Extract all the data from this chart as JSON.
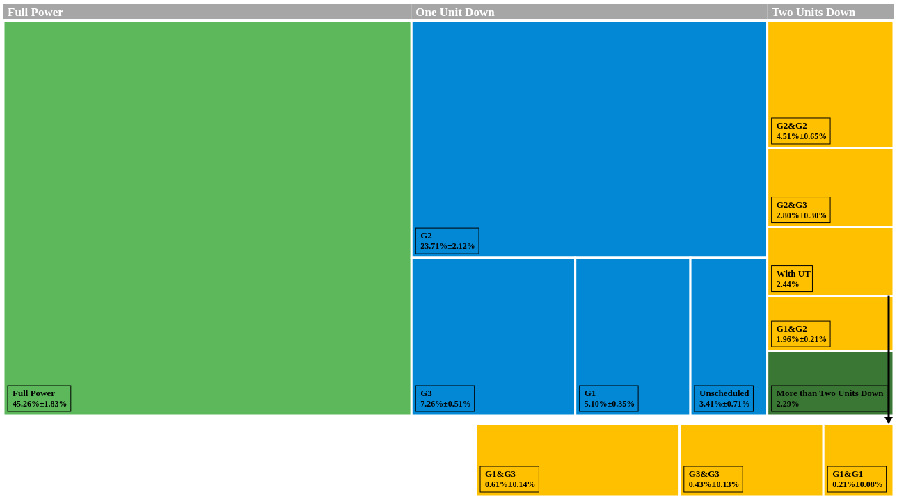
{
  "chart_data": {
    "type": "other",
    "categories": [
      "Full Power",
      "G2",
      "G3",
      "G1",
      "Unscheduled",
      "G2&G2",
      "G2&G3",
      "With UT",
      "G1&G2",
      "More than Two Units Down",
      "G1&G3",
      "G3&G3",
      "G1&G1"
    ],
    "series": [
      {
        "name": "Full Power",
        "color": "#5cb85a",
        "values": [
          45.26,
          null,
          null,
          null,
          null,
          null,
          null,
          null,
          null,
          null,
          null,
          null,
          null
        ],
        "value_labels": [
          "45.26%±1.83%",
          null,
          null,
          null,
          null,
          null,
          null,
          null,
          null,
          null,
          null,
          null,
          null
        ]
      },
      {
        "name": "One Unit Down",
        "color": "#0288d4",
        "values": [
          null,
          23.71,
          7.26,
          5.1,
          3.41,
          null,
          null,
          null,
          null,
          null,
          null,
          null,
          null
        ],
        "value_labels": [
          null,
          "23.71%±2.12%",
          "7.26%±0.51%",
          "5.10%±0.35%",
          "3.41%±0.71%",
          null,
          null,
          null,
          null,
          null,
          null,
          null,
          null
        ]
      },
      {
        "name": "Two Units Down",
        "values": [
          null,
          null,
          null,
          null,
          null,
          4.51,
          2.8,
          2.44,
          1.96,
          2.29,
          null,
          null,
          null
        ],
        "value_labels": [
          null,
          null,
          null,
          null,
          null,
          "4.51%±0.65%",
          "2.80%±0.30%",
          "2.44%",
          "1.96%±0.21%",
          "2.29%",
          null,
          null,
          null
        ],
        "colors": [
          null,
          null,
          null,
          null,
          null,
          "#ffc000",
          "#ffc000",
          "#ffc000",
          "#ffc000",
          "#3a7634",
          null,
          null,
          null
        ]
      },
      {
        "color": "#ffc000",
        "values": [
          null,
          null,
          null,
          null,
          null,
          null,
          null,
          null,
          null,
          null,
          0.61,
          0.43,
          0.21
        ],
        "value_labels": [
          null,
          null,
          null,
          null,
          null,
          null,
          null,
          null,
          null,
          null,
          "0.61%±0.14%",
          "0.43%±0.13%",
          "0.21%±0.08%"
        ]
      }
    ]
  }
}
